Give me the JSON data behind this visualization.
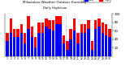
{
  "title": "Milwaukee Weather Outdoor Humidity",
  "subtitle": "Daily High/Low",
  "high_values": [
    55,
    90,
    65,
    65,
    75,
    55,
    95,
    70,
    45,
    80,
    80,
    90,
    85,
    85,
    95,
    95,
    50,
    35,
    65,
    90,
    55,
    75,
    75,
    85,
    35,
    85,
    90,
    80,
    75,
    65
  ],
  "low_values": [
    35,
    55,
    45,
    45,
    55,
    30,
    65,
    45,
    20,
    55,
    55,
    70,
    65,
    60,
    75,
    75,
    30,
    15,
    40,
    60,
    30,
    55,
    55,
    65,
    15,
    65,
    70,
    55,
    50,
    45
  ],
  "high_color": "#ff0000",
  "low_color": "#0000ff",
  "bg_color": "#ffffff",
  "plot_bg_color": "#ffffff",
  "ylim": [
    0,
    100
  ],
  "yticks": [
    20,
    40,
    60,
    80,
    100
  ],
  "dashed_line_x": 16,
  "n": 30,
  "xlabels": [
    "1",
    "2",
    "3",
    "4",
    "5",
    "6",
    "7",
    "8",
    "9",
    "10",
    "11",
    "12",
    "13",
    "14",
    "15",
    "16",
    "17",
    "18",
    "19",
    "20",
    "21",
    "22",
    "23",
    "24",
    "25",
    "26",
    "27",
    "28",
    "29",
    "30"
  ]
}
